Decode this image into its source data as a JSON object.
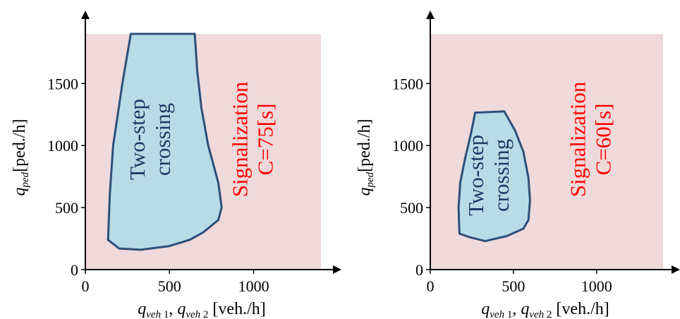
{
  "colors": {
    "background_region": "#efd9da",
    "two_step_fill": "#b8dce6",
    "two_step_stroke": "#2d4f78",
    "two_step_text": "#1f3a66",
    "signal_text": "#ff0000",
    "axis": "#000000"
  },
  "axis_labels": {
    "y_main": "q",
    "y_sub": "ped",
    "y_unit": "[ped./h]",
    "x_q1": "q",
    "x_sub1": "veh_1",
    "x_comma": ", ",
    "x_q2": "q",
    "x_sub2": "veh_2",
    "x_unit": "[veh./h]"
  },
  "chart_data": [
    {
      "type": "area",
      "xlim": [
        0,
        1400
      ],
      "ylim": [
        0,
        1900
      ],
      "x_ticks": [
        "0",
        "500",
        "1000"
      ],
      "y_ticks": [
        "0",
        "500",
        "1000",
        "1500"
      ],
      "grid": false,
      "regions": [
        {
          "name": "signalization",
          "label_lines": [
            "Signalization",
            "C=75[s]"
          ],
          "extent": {
            "x": [
              0,
              1400
            ],
            "y": [
              0,
              1900
            ]
          }
        },
        {
          "name": "two_step",
          "label_lines": [
            "Two-step",
            "crossing"
          ],
          "boundary": [
            [
              270,
              1900
            ],
            [
              220,
              1500
            ],
            [
              165,
              1000
            ],
            [
              145,
              600
            ],
            [
              135,
              240
            ],
            [
              200,
              170
            ],
            [
              330,
              160
            ],
            [
              500,
              190
            ],
            [
              620,
              240
            ],
            [
              700,
              300
            ],
            [
              790,
              400
            ],
            [
              810,
              500
            ],
            [
              790,
              700
            ],
            [
              730,
              1000
            ],
            [
              690,
              1300
            ],
            [
              665,
              1600
            ],
            [
              650,
              1900
            ]
          ]
        }
      ]
    },
    {
      "type": "area",
      "xlim": [
        0,
        1400
      ],
      "ylim": [
        0,
        1900
      ],
      "x_ticks": [
        "0",
        "500",
        "1000"
      ],
      "y_ticks": [
        "0",
        "500",
        "1000",
        "1500"
      ],
      "grid": false,
      "regions": [
        {
          "name": "signalization",
          "label_lines": [
            "Signalization",
            "C=60[s]"
          ],
          "extent": {
            "x": [
              0,
              1400
            ],
            "y": [
              0,
              1900
            ]
          }
        },
        {
          "name": "two_step",
          "label_lines": [
            "Two-step",
            "crossing"
          ],
          "boundary": [
            [
              270,
              1265
            ],
            [
              445,
              1275
            ],
            [
              510,
              1120
            ],
            [
              560,
              950
            ],
            [
              590,
              740
            ],
            [
              600,
              560
            ],
            [
              590,
              400
            ],
            [
              560,
              330
            ],
            [
              460,
              270
            ],
            [
              330,
              230
            ],
            [
              240,
              260
            ],
            [
              175,
              290
            ],
            [
              170,
              500
            ],
            [
              180,
              700
            ],
            [
              210,
              900
            ],
            [
              245,
              1100
            ]
          ]
        }
      ]
    }
  ]
}
